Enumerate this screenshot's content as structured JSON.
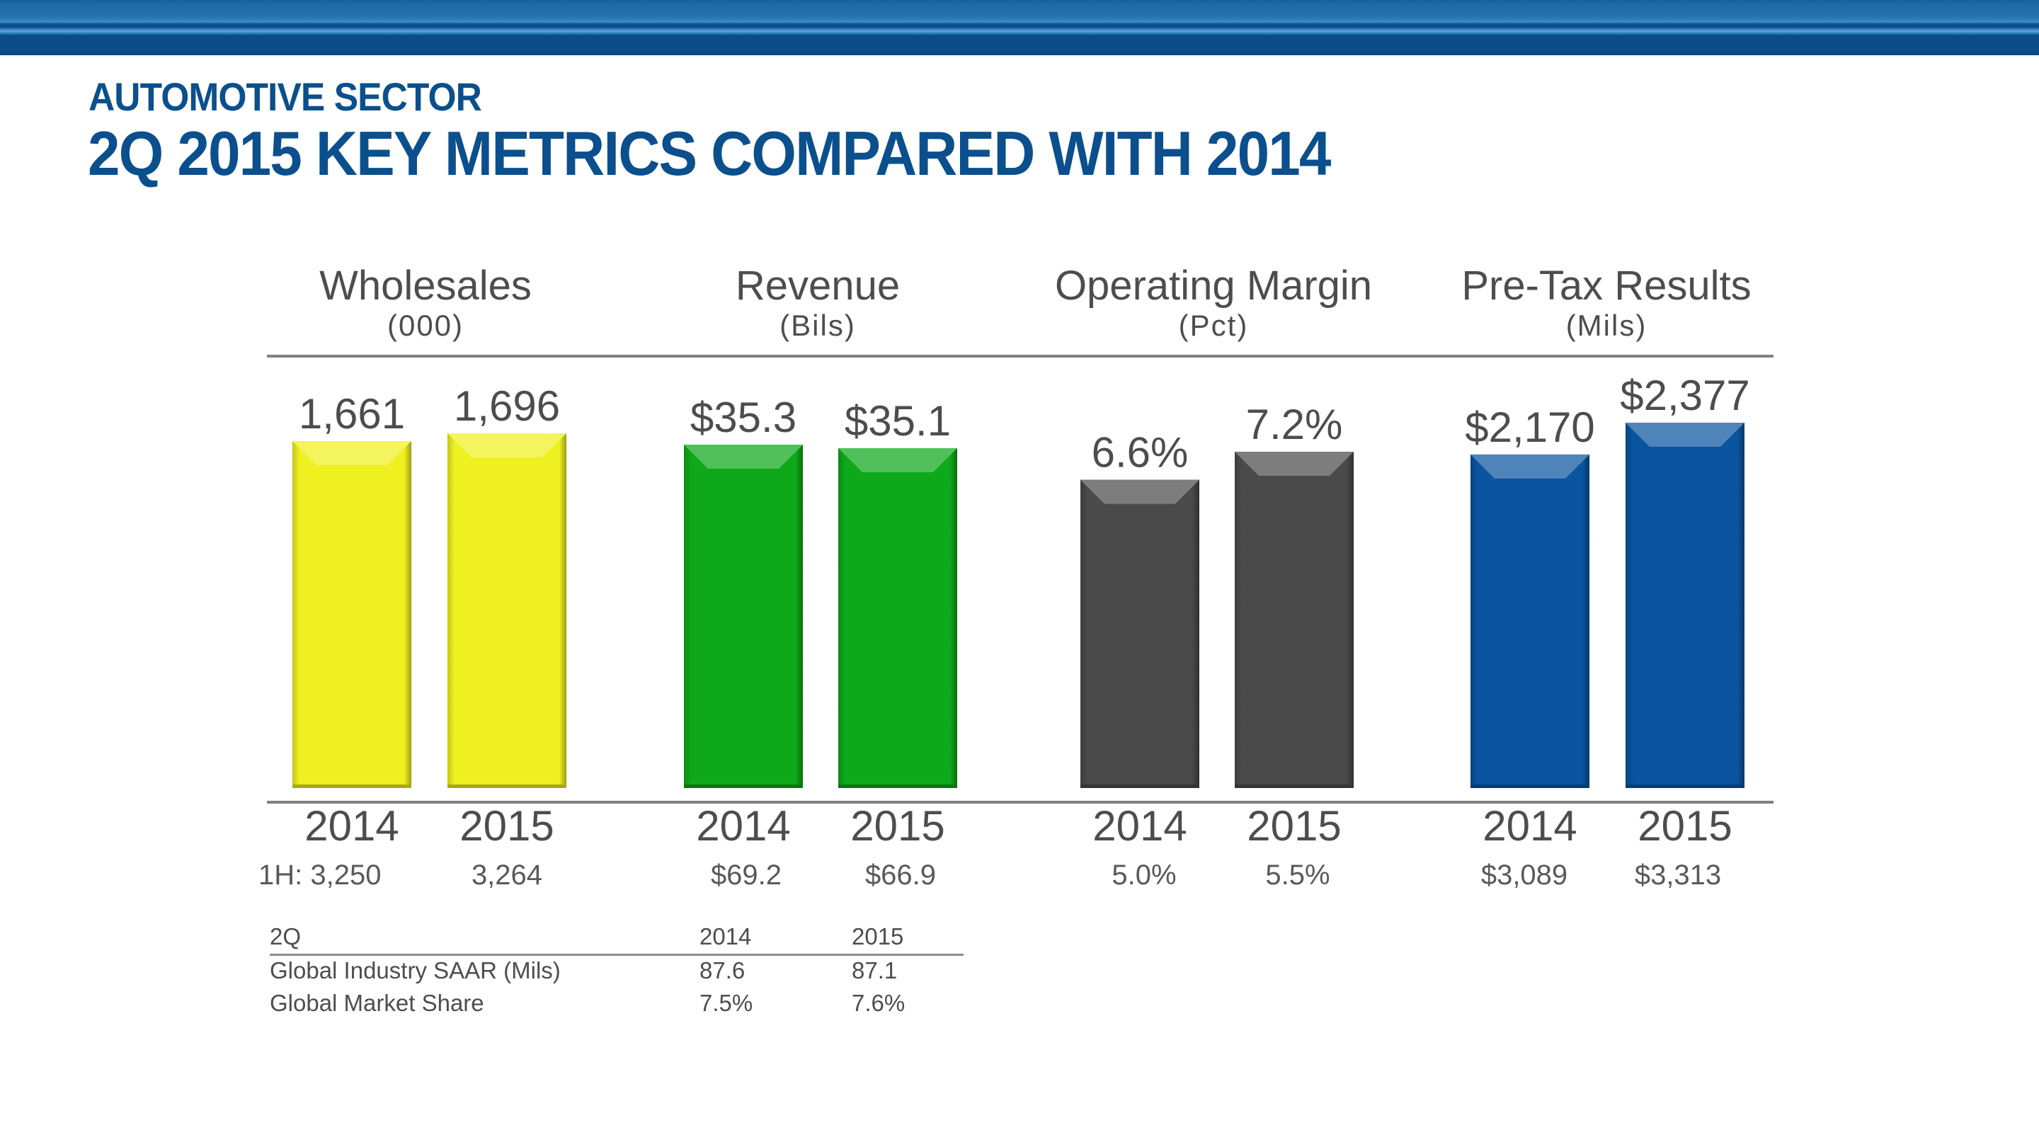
{
  "header": {
    "kicker": "AUTOMOTIVE SECTOR",
    "title": "2Q 2015 KEY METRICS COMPARED WITH 2014",
    "brand_color": "#0b4f8d"
  },
  "chart_data": {
    "type": "bar",
    "title": "2Q 2015 KEY METRICS COMPARED WITH 2014",
    "categories": [
      "2014",
      "2015"
    ],
    "groups": [
      {
        "name": "Wholesales",
        "unit": "(000)",
        "color": "#eef020",
        "values": [
          1661,
          1696
        ],
        "labels": [
          "1,661",
          "1,696"
        ],
        "ylim": [
          1250,
          1696
        ],
        "first_half_prefix": "1H:",
        "first_half": [
          "3,250",
          "3,264"
        ]
      },
      {
        "name": "Revenue",
        "unit": "(Bils)",
        "color": "#0ea81a",
        "values": [
          35.3,
          35.1
        ],
        "labels": [
          "$35.3",
          "$35.1"
        ],
        "ylim": [
          31.0,
          35.3
        ],
        "first_half": [
          "$69.2",
          "$66.9"
        ]
      },
      {
        "name": "Operating Margin",
        "unit": "(Pct)",
        "color": "#4a4a4a",
        "values": [
          6.6,
          7.2
        ],
        "labels": [
          "6.6%",
          "7.2%"
        ],
        "ylim": [
          0.0,
          7.2
        ],
        "first_half": [
          "5.0%",
          "5.5%"
        ]
      },
      {
        "name": "Pre-Tax Results",
        "unit": "(Mils)",
        "color": "#0b54a0",
        "values": [
          2170,
          2377
        ],
        "labels": [
          "$2,170",
          "$2,377"
        ],
        "ylim": [
          0,
          2377
        ],
        "first_half": [
          "$3,089",
          "$3,313"
        ]
      }
    ],
    "grid": false,
    "legend": "none"
  },
  "table": {
    "header": [
      "2Q",
      "2014",
      "2015"
    ],
    "rows": [
      [
        "Global Industry SAAR (Mils)",
        "87.6",
        "87.1"
      ],
      [
        "Global Market Share",
        "7.5%",
        "7.6%"
      ]
    ]
  }
}
